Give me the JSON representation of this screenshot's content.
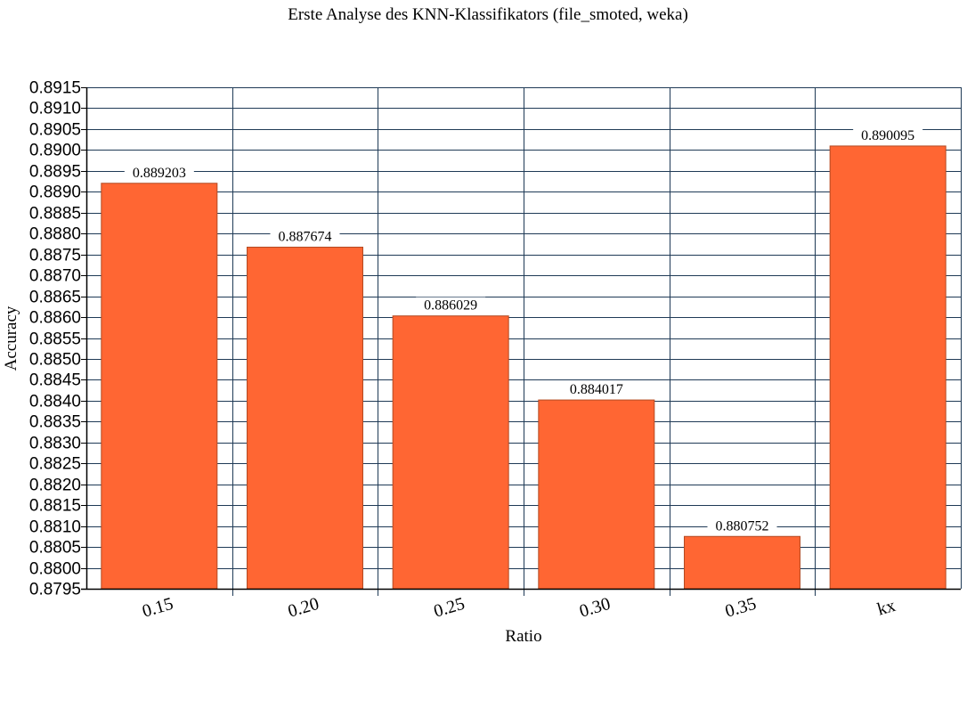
{
  "chart_data": {
    "type": "bar",
    "title": "Erste Analyse des KNN-Klassifikators (file_smoted, weka)",
    "xlabel": "Ratio",
    "ylabel": "Accuracy",
    "categories": [
      "0.15",
      "0.20",
      "0.25",
      "0.30",
      "0.35",
      "kx"
    ],
    "values": [
      0.889203,
      0.887674,
      0.886029,
      0.884017,
      0.880752,
      0.890095
    ],
    "data_labels": [
      "0.889203",
      "0.887674",
      "0.886029",
      "0.884017",
      "0.880752",
      "0.890095"
    ],
    "ylim": [
      0.8795,
      0.8915
    ],
    "ytick_step": 0.0005,
    "yticks": [
      "0.8795",
      "0.8800",
      "0.8805",
      "0.8810",
      "0.8815",
      "0.8820",
      "0.8825",
      "0.8830",
      "0.8835",
      "0.8840",
      "0.8845",
      "0.8850",
      "0.8855",
      "0.8860",
      "0.8865",
      "0.8870",
      "0.8875",
      "0.8880",
      "0.8885",
      "0.8890",
      "0.8895",
      "0.8900",
      "0.8905",
      "0.8910",
      "0.8915"
    ],
    "grid": true,
    "legend": "none",
    "colors": {
      "bar": "#ff6633",
      "bar_edge": "#b34a22",
      "grid": "#1f3a56",
      "axis": "#000000"
    }
  }
}
